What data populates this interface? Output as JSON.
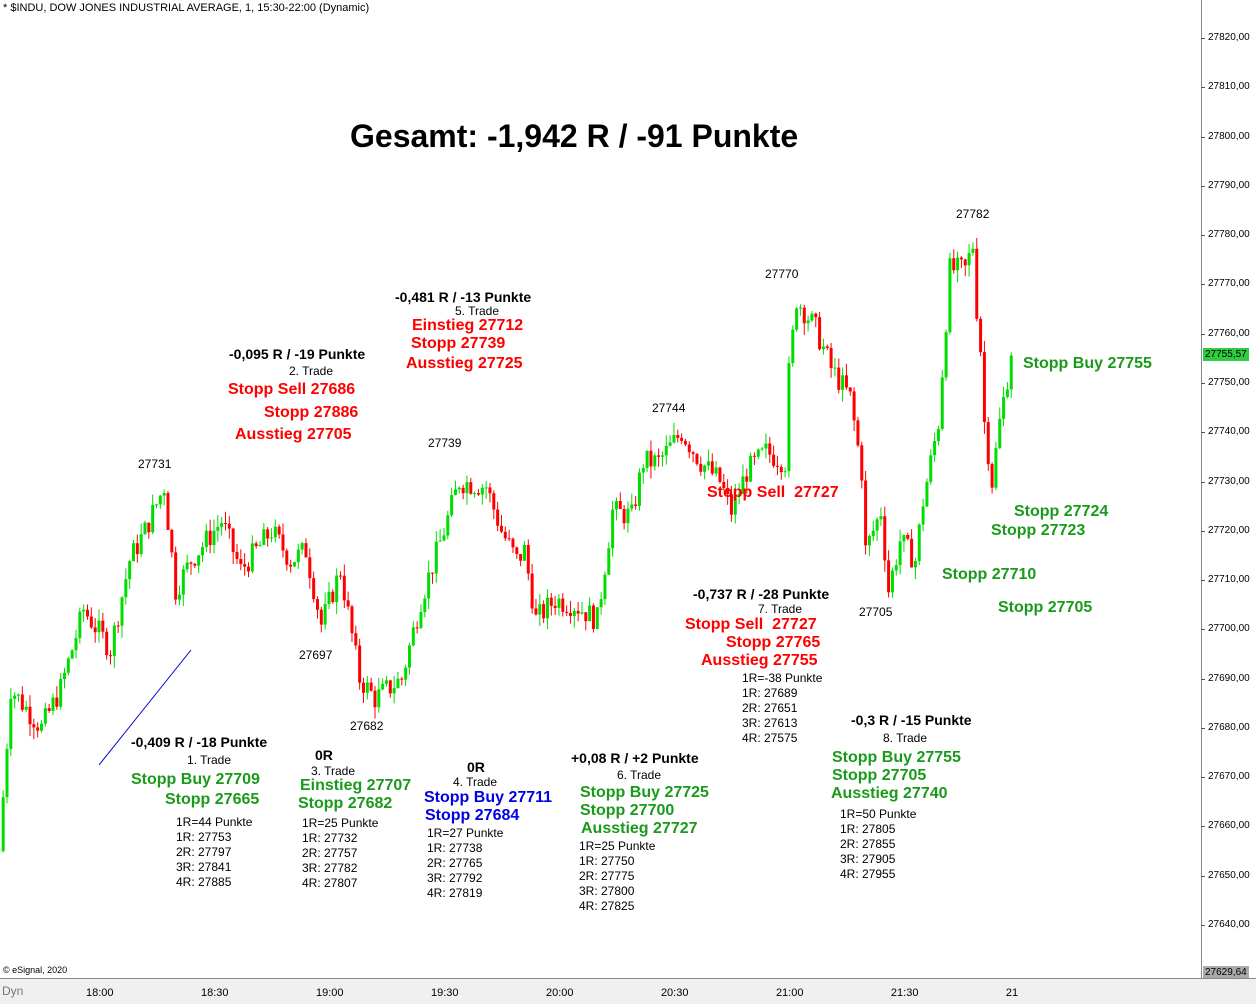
{
  "header": {
    "title": "* $INDU, DOW JONES INDUSTRIAL AVERAGE, 1, 15:30-22:00 (Dynamic)",
    "copyright": "© eSignal, 2020",
    "dyn_label": "Dyn"
  },
  "colors": {
    "up": "#00dd00",
    "down": "#ff0000",
    "trendline": "#0000cc",
    "current": "#2ecc40"
  },
  "chart_data": {
    "type": "candlestick",
    "title": "Gesamt: -1,942 R / -91 Punkte",
    "ylim": [
      27629.64,
      27827
    ],
    "y_ticks": [
      "27820,00",
      "27810,00",
      "27800,00",
      "27790,00",
      "27780,00",
      "27770,00",
      "27760,00",
      "27750,00",
      "27740,00",
      "27730,00",
      "27720,00",
      "27710,00",
      "27700,00",
      "27690,00",
      "27680,00",
      "27670,00",
      "27660,00",
      "27650,00",
      "27640,00"
    ],
    "y_tick_values": [
      27820,
      27810,
      27800,
      27790,
      27780,
      27770,
      27760,
      27750,
      27740,
      27730,
      27720,
      27710,
      27700,
      27690,
      27680,
      27670,
      27660,
      27650,
      27640
    ],
    "x_ticks": [
      "18:00",
      "18:30",
      "19:00",
      "19:30",
      "20:00",
      "20:30",
      "21:00",
      "21:30",
      "21"
    ],
    "x_tick_minutes": [
      0,
      30,
      60,
      90,
      120,
      150,
      180,
      210,
      240
    ],
    "current_price": "27755,57",
    "axis_low": "27629,64",
    "price_path_minutes_from_1800": [
      [
        -26,
        27655
      ],
      [
        -23,
        27688
      ],
      [
        -15,
        27680
      ],
      [
        -10,
        27688
      ],
      [
        -4,
        27704
      ],
      [
        3,
        27696
      ],
      [
        8,
        27714
      ],
      [
        12,
        27720
      ],
      [
        17,
        27729
      ],
      [
        20,
        27708
      ],
      [
        24,
        27714
      ],
      [
        32,
        27722
      ],
      [
        37,
        27712
      ],
      [
        45,
        27720
      ],
      [
        50,
        27714
      ],
      [
        54,
        27716
      ],
      [
        58,
        27701
      ],
      [
        63,
        27712
      ],
      [
        68,
        27690
      ],
      [
        72,
        27686
      ],
      [
        79,
        27690
      ],
      [
        84,
        27706
      ],
      [
        90,
        27720
      ],
      [
        94,
        27730
      ],
      [
        101,
        27729
      ],
      [
        105,
        27720
      ],
      [
        109,
        27714
      ],
      [
        111,
        27716
      ],
      [
        114,
        27702
      ],
      [
        119,
        27706
      ],
      [
        124,
        27705
      ],
      [
        130,
        27702
      ],
      [
        134,
        27724
      ],
      [
        139,
        27723
      ],
      [
        142,
        27734
      ],
      [
        146,
        27734
      ],
      [
        152,
        27740
      ],
      [
        157,
        27734
      ],
      [
        162,
        27730
      ],
      [
        165,
        27724
      ],
      [
        169,
        27732
      ],
      [
        174,
        27736
      ],
      [
        179,
        27734
      ],
      [
        180,
        27752
      ],
      [
        182,
        27767
      ],
      [
        187,
        27761
      ],
      [
        191,
        27753
      ],
      [
        196,
        27747
      ],
      [
        199,
        27732
      ],
      [
        200,
        27716
      ],
      [
        204,
        27724
      ],
      [
        206,
        27708
      ],
      [
        209,
        27718
      ],
      [
        213,
        27714
      ],
      [
        215,
        27726
      ],
      [
        219,
        27742
      ],
      [
        222,
        27773
      ],
      [
        226,
        27773
      ],
      [
        228,
        27778
      ],
      [
        229,
        27765
      ],
      [
        230,
        27757
      ],
      [
        231,
        27742
      ],
      [
        233,
        27730
      ],
      [
        235,
        27742
      ],
      [
        238,
        27755.57
      ]
    ],
    "peak_labels": [
      "27731",
      "27697",
      "27682",
      "27739",
      "27744",
      "27770",
      "27705",
      "27782"
    ]
  },
  "trades": [
    {
      "result": "-0,409 R / -18 Punkte",
      "name": "1. Trade",
      "orders": [
        "Stopp Buy 27709",
        "Stopp 27665"
      ],
      "details": [
        "1R=44 Punkte",
        "1R: 27753",
        "2R: 27797",
        "3R: 27841",
        "4R: 27885"
      ]
    },
    {
      "result": "-0,095 R / -19 Punkte",
      "name": "2. Trade",
      "orders": [
        "Stopp Sell 27686",
        "Stopp 27886",
        "Ausstieg 27705"
      ],
      "details": []
    },
    {
      "result": "0R",
      "name": "3. Trade",
      "orders": [
        "Einstieg 27707",
        "Stopp 27682"
      ],
      "details": [
        "1R=25 Punkte",
        "1R: 27732",
        "2R: 27757",
        "3R: 27782",
        "4R: 27807"
      ]
    },
    {
      "result": "0R",
      "name": "4. Trade",
      "orders": [
        "Stopp Buy 27711",
        "Stopp 27684"
      ],
      "details": [
        "1R=27 Punkte",
        "1R: 27738",
        "2R: 27765",
        "3R: 27792",
        "4R: 27819"
      ]
    },
    {
      "result": "-0,481 R / -13 Punkte",
      "name": "5. Trade",
      "orders": [
        "Einstieg 27712",
        "Stopp 27739",
        "Ausstieg 27725"
      ],
      "details": []
    },
    {
      "result": "+0,08 R / +2 Punkte",
      "name": "6. Trade",
      "orders": [
        "Stopp Buy 27725",
        "Stopp 27700",
        "Ausstieg 27727"
      ],
      "details": [
        "1R=25 Punkte",
        "1R: 27750",
        "2R: 27775",
        "3R: 27800",
        "4R: 27825"
      ]
    },
    {
      "result": "-0,737 R / -28 Punkte",
      "name": "7. Trade",
      "orders": [
        "Stopp Sell  27727",
        "Stopp 27765",
        "Ausstieg 27755"
      ],
      "details": [
        "1R=-38 Punkte",
        "1R: 27689",
        "2R: 27651",
        "3R: 27613",
        "4R: 27575"
      ]
    },
    {
      "result": "-0,3 R / -15 Punkte",
      "name": "8. Trade",
      "orders": [
        "Stopp Buy 27755",
        "Stopp 27705",
        "Ausstieg 27740"
      ],
      "details": [
        "1R=50 Punkte",
        "1R: 27805",
        "2R: 27855",
        "3R: 27905",
        "4R: 27955"
      ]
    }
  ],
  "chart_notes": [
    "Stopp Sell  27727",
    "Stopp Buy 27755",
    "Stopp 27724",
    "Stopp 27723",
    "Stopp 27710",
    "Stopp 27705"
  ]
}
